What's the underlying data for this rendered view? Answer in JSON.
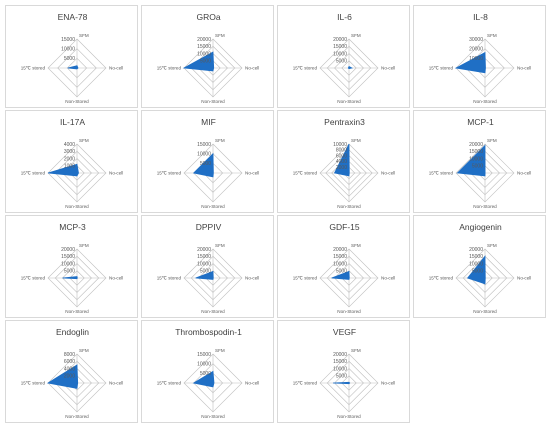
{
  "axis_labels": {
    "top": "SFM",
    "right": "No-cell",
    "bottom": "Non-Stored",
    "left": "15℃ stored"
  },
  "colors": {
    "fill": "#1f6fc5",
    "grid": "#bfbfbf",
    "text": "#595959"
  },
  "chart_data": [
    {
      "type": "radar",
      "title": "ENA-78",
      "axes": [
        "SFM",
        "No-cell",
        "Non-Stored",
        "15℃ stored"
      ],
      "ticks": [
        "5000",
        "10000",
        "15000"
      ],
      "max": 15000,
      "values": [
        1200,
        500,
        500,
        4800
      ]
    },
    {
      "type": "radar",
      "title": "GROa",
      "axes": [
        "SFM",
        "No-cell",
        "Non-Stored",
        "15℃ stored"
      ],
      "ticks": [
        "5000",
        "10000",
        "15000",
        "20000"
      ],
      "max": 20000,
      "values": [
        11000,
        500,
        2000,
        20000
      ]
    },
    {
      "type": "radar",
      "title": "IL-6",
      "axes": [
        "SFM",
        "No-cell",
        "Non-Stored",
        "15℃ stored"
      ],
      "ticks": [
        "5000",
        "10000",
        "15000",
        "20000"
      ],
      "max": 20000,
      "values": [
        1000,
        2000,
        500,
        500
      ]
    },
    {
      "type": "radar",
      "title": "IL-8",
      "axes": [
        "SFM",
        "No-cell",
        "Non-Stored",
        "15℃ stored"
      ],
      "ticks": [
        "10000",
        "20000",
        "30000"
      ],
      "max": 30000,
      "values": [
        16000,
        500,
        5000,
        30000
      ]
    },
    {
      "type": "radar",
      "title": "IL-17A",
      "axes": [
        "SFM",
        "No-cell",
        "Non-Stored",
        "15℃ stored"
      ],
      "ticks": [
        "1000",
        "2000",
        "3000",
        "4000"
      ],
      "max": 4000,
      "values": [
        1200,
        200,
        400,
        4000
      ]
    },
    {
      "type": "radar",
      "title": "MIF",
      "axes": [
        "SFM",
        "No-cell",
        "Non-Stored",
        "15℃ stored"
      ],
      "ticks": [
        "5000",
        "10000",
        "15000"
      ],
      "max": 15000,
      "values": [
        10000,
        200,
        2000,
        10000
      ]
    },
    {
      "type": "radar",
      "title": "Pentraxin3",
      "axes": [
        "SFM",
        "No-cell",
        "Non-Stored",
        "15℃ stored"
      ],
      "ticks": [
        "2000",
        "4000",
        "6000",
        "8000",
        "10000"
      ],
      "max": 10000,
      "values": [
        10000,
        100,
        1000,
        5000
      ]
    },
    {
      "type": "radar",
      "title": "MCP-1",
      "axes": [
        "SFM",
        "No-cell",
        "Non-Stored",
        "15℃ stored"
      ],
      "ticks": [
        "5000",
        "10000",
        "15000",
        "20000"
      ],
      "max": 20000,
      "values": [
        19000,
        100,
        2000,
        19000
      ]
    },
    {
      "type": "radar",
      "title": "MCP-3",
      "axes": [
        "SFM",
        "No-cell",
        "Non-Stored",
        "15℃ stored"
      ],
      "ticks": [
        "5000",
        "10000",
        "15000",
        "20000"
      ],
      "max": 20000,
      "values": [
        1000,
        200,
        500,
        10000
      ]
    },
    {
      "type": "radar",
      "title": "DPPIV",
      "axes": [
        "SFM",
        "No-cell",
        "Non-Stored",
        "15℃ stored"
      ],
      "ticks": [
        "5000",
        "10000",
        "15000",
        "20000"
      ],
      "max": 20000,
      "values": [
        4500,
        200,
        1000,
        12000
      ]
    },
    {
      "type": "radar",
      "title": "GDF-15",
      "axes": [
        "SFM",
        "No-cell",
        "Non-Stored",
        "15℃ stored"
      ],
      "ticks": [
        "5000",
        "10000",
        "15000",
        "20000"
      ],
      "max": 20000,
      "values": [
        4500,
        200,
        1000,
        12000
      ]
    },
    {
      "type": "radar",
      "title": "Angiogenin",
      "axes": [
        "SFM",
        "No-cell",
        "Non-Stored",
        "15℃ stored"
      ],
      "ticks": [
        "5000",
        "10000",
        "15000",
        "20000"
      ],
      "max": 20000,
      "values": [
        15000,
        200,
        4000,
        12000
      ]
    },
    {
      "type": "radar",
      "title": "Endoglin",
      "axes": [
        "SFM",
        "No-cell",
        "Non-Stored",
        "15℃ stored"
      ],
      "ticks": [
        "2000",
        "4000",
        "6000",
        "8000"
      ],
      "max": 8000,
      "values": [
        5000,
        200,
        1500,
        8000
      ]
    },
    {
      "type": "radar",
      "title": "Thrombospodin-1",
      "axes": [
        "SFM",
        "No-cell",
        "Non-Stored",
        "15℃ stored"
      ],
      "ticks": [
        "5000",
        "10000",
        "15000"
      ],
      "max": 15000,
      "values": [
        6000,
        500,
        2000,
        10000
      ]
    },
    {
      "type": "radar",
      "title": "VEGF",
      "axes": [
        "SFM",
        "No-cell",
        "Non-Stored",
        "15℃ stored"
      ],
      "ticks": [
        "5000",
        "10000",
        "15000",
        "20000"
      ],
      "max": 20000,
      "values": [
        500,
        500,
        500,
        11000
      ]
    }
  ]
}
